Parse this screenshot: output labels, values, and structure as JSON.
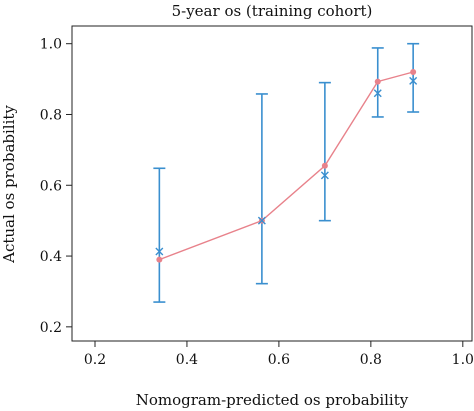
{
  "chart_data": {
    "type": "line",
    "title": "5-year os (training cohort)",
    "xlabel": "Nomogram-predicted os probability",
    "ylabel": "Actual os probability",
    "xlim": [
      0.15,
      1.02
    ],
    "ylim": [
      0.16,
      1.05
    ],
    "x_ticks": [
      "0.2",
      "0.4",
      "0.6",
      "0.8",
      "1.0"
    ],
    "y_ticks": [
      "0.2",
      "0.4",
      "0.6",
      "0.8",
      "1.0"
    ],
    "grid": false,
    "series": [
      {
        "type": "line",
        "color": "#e8828b",
        "x": [
          0.34,
          0.563,
          0.7,
          0.815,
          0.892
        ],
        "y": [
          0.39,
          0.5,
          0.655,
          0.893,
          0.92
        ]
      }
    ],
    "observed": {
      "marker": "x",
      "color": "#3a8fcf",
      "x": [
        0.34,
        0.563,
        0.7,
        0.815,
        0.892
      ],
      "y": [
        0.413,
        0.5,
        0.628,
        0.86,
        0.895
      ],
      "lower": [
        0.27,
        0.322,
        0.5,
        0.793,
        0.807
      ],
      "upper": [
        0.648,
        0.858,
        0.89,
        0.988,
        1.0
      ]
    }
  }
}
